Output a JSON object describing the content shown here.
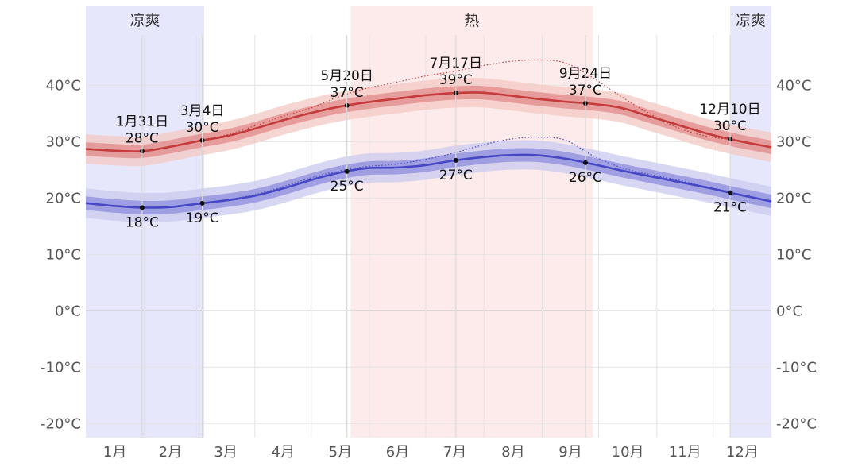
{
  "chart_data": {
    "type": "line",
    "x_ticks": [
      "1月",
      "2月",
      "3月",
      "4月",
      "5月",
      "6月",
      "7月",
      "8月",
      "9月",
      "10月",
      "11月",
      "12月"
    ],
    "y_ticks": [
      "40°C",
      "30°C",
      "20°C",
      "10°C",
      "0°C",
      "-10°C",
      "-20°C"
    ],
    "y_tick_values": [
      40,
      30,
      20,
      10,
      0,
      -10,
      -20
    ],
    "ylim": [
      -22.5,
      54
    ],
    "grid": true,
    "seasons": [
      {
        "label": "凉爽",
        "start_day": 0,
        "end_day": 63,
        "color": "#e7e7fb"
      },
      {
        "label": "热",
        "start_day": 141,
        "end_day": 270,
        "color": "#fdeaea"
      },
      {
        "label": "凉爽",
        "start_day": 343,
        "end_day": 365,
        "color": "#e7e7fb"
      }
    ],
    "day_of_year": [
      0,
      15,
      30,
      45,
      60,
      75,
      90,
      105,
      120,
      135,
      150,
      165,
      180,
      195,
      210,
      225,
      240,
      255,
      270,
      285,
      300,
      315,
      330,
      345,
      365
    ],
    "series": [
      {
        "color": "#c33b3b",
        "values": [
          28.7,
          28.4,
          28.3,
          29.1,
          30.1,
          31.0,
          32.3,
          33.8,
          35.1,
          36.2,
          37.0,
          37.6,
          38.2,
          38.6,
          38.7,
          38.2,
          37.6,
          37.1,
          36.7,
          36.0,
          34.5,
          33.0,
          31.5,
          30.3,
          29.0
        ],
        "band_inner": 1.2,
        "band_outer": 2.6,
        "band_inner_color": "#e08a8a",
        "band_outer_color": "#f3c8c3",
        "dotted_values": [
          null,
          null,
          null,
          null,
          30.2,
          31.2,
          32.8,
          34.5,
          36.0,
          38.0,
          39.5,
          40.5,
          41.6,
          42.4,
          43.4,
          44.2,
          44.5,
          44.0,
          41.3,
          38.0,
          35.0,
          32.5,
          31.0,
          30.3,
          null
        ]
      },
      {
        "color": "#4747c6",
        "values": [
          19.1,
          18.6,
          18.3,
          18.4,
          19.0,
          19.6,
          20.4,
          21.7,
          23.2,
          24.5,
          25.3,
          25.4,
          25.8,
          26.6,
          27.2,
          27.6,
          27.6,
          27.0,
          26.0,
          24.9,
          23.9,
          22.9,
          21.9,
          20.8,
          19.4
        ],
        "band_inner": 1.2,
        "band_outer": 2.6,
        "band_inner_color": "#8c8cdc",
        "band_outer_color": "#c9c9ef",
        "dotted_values": [
          null,
          null,
          null,
          null,
          19.0,
          19.7,
          20.6,
          22.0,
          23.6,
          24.8,
          25.6,
          26.0,
          26.8,
          27.9,
          29.3,
          30.4,
          30.8,
          30.3,
          27.5,
          25.4,
          24.2,
          23.2,
          22.0,
          21.0,
          null
        ]
      }
    ],
    "annotations": [
      {
        "day": 30,
        "value": 28,
        "date": "1月31日",
        "temp": "28°C",
        "pos": "above"
      },
      {
        "day": 62,
        "value": 30,
        "date": "3月4日",
        "temp": "30°C",
        "pos": "above"
      },
      {
        "day": 139,
        "value": 37,
        "date": "5月20日",
        "temp": "37°C",
        "pos": "above"
      },
      {
        "day": 197,
        "value": 39,
        "date": "7月17日",
        "temp": "39°C",
        "pos": "above"
      },
      {
        "day": 266,
        "value": 37,
        "date": "9月24日",
        "temp": "37°C",
        "pos": "above"
      },
      {
        "day": 343,
        "value": 30,
        "date": "12月10日",
        "temp": "30°C",
        "pos": "above"
      },
      {
        "day": 30,
        "value": 18,
        "temp": "18°C",
        "pos": "below"
      },
      {
        "day": 62,
        "value": 19,
        "temp": "19°C",
        "pos": "below"
      },
      {
        "day": 139,
        "value": 25,
        "temp": "25°C",
        "pos": "below"
      },
      {
        "day": 197,
        "value": 27,
        "temp": "27°C",
        "pos": "below"
      },
      {
        "day": 266,
        "value": 26,
        "temp": "26°C",
        "pos": "below"
      },
      {
        "day": 343,
        "value": 21,
        "temp": "21°C",
        "pos": "below"
      }
    ]
  }
}
